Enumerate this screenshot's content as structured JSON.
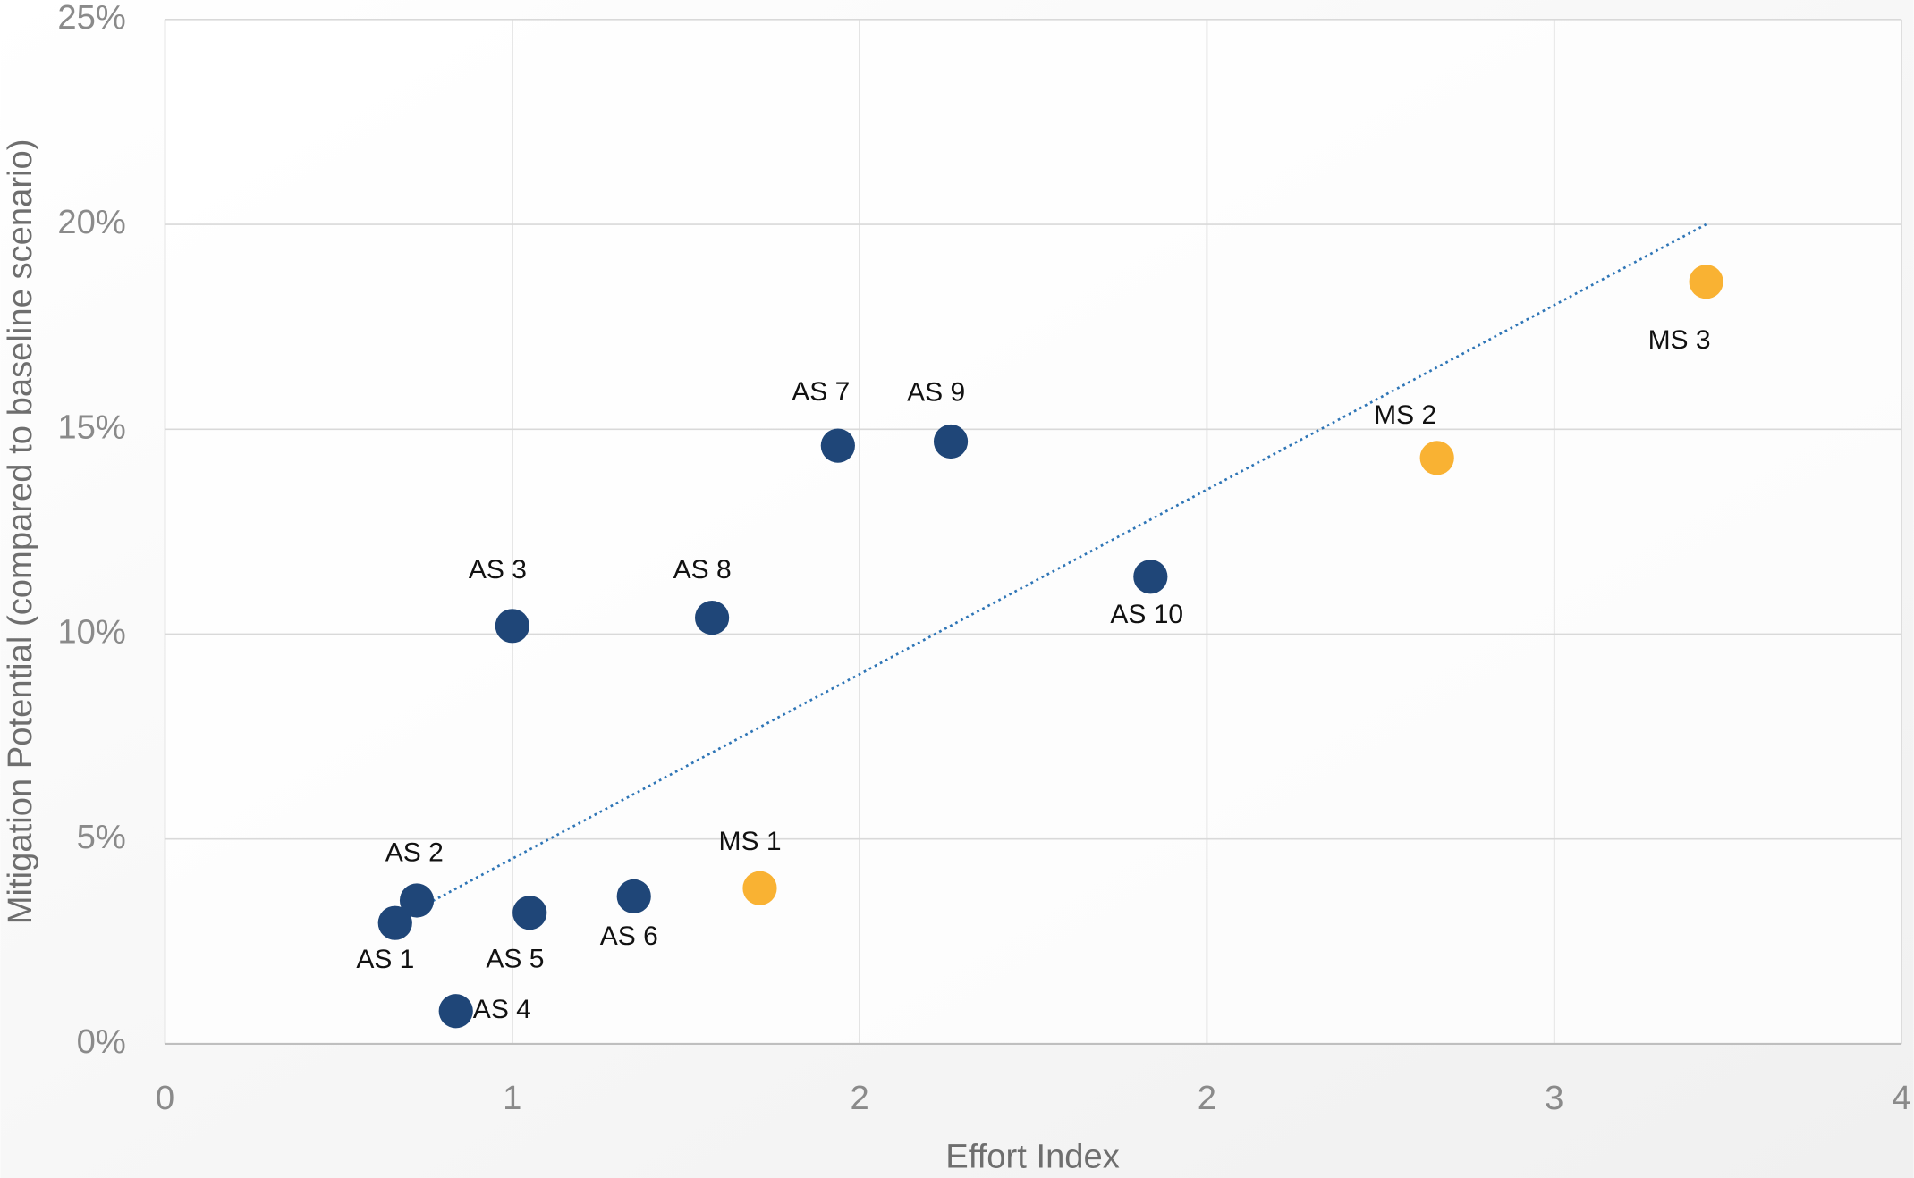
{
  "chart_data": {
    "type": "scatter",
    "xlabel": "Effort Index",
    "ylabel": "Mitigation Potential (compared to baseline scenario)",
    "xlim": [
      0,
      4
    ],
    "xticks": [
      0,
      {
        "value": 0.8,
        "label": "1"
      },
      {
        "value": 1.6,
        "label": "2"
      },
      {
        "value": 2.4,
        "label": "2"
      },
      {
        "value": 3.2,
        "label": "3"
      },
      4
    ],
    "ylim": [
      0,
      25
    ],
    "yticks": [
      {
        "value": 0,
        "label": "0%"
      },
      {
        "value": 5,
        "label": "5%"
      },
      {
        "value": 10,
        "label": "10%"
      },
      {
        "value": 15,
        "label": "15%"
      },
      {
        "value": 20,
        "label": "20%"
      },
      {
        "value": 25,
        "label": "25%"
      }
    ],
    "grid": true,
    "series": [
      {
        "color": "#1f4678",
        "labels": [
          "AS 1",
          "AS 2",
          "AS 3",
          "AS 4",
          "AS 5",
          "AS 6",
          "AS 7",
          "AS 8",
          "AS 9",
          "AS 10"
        ],
        "x": [
          0.53,
          0.58,
          0.8,
          0.67,
          0.84,
          1.08,
          1.55,
          1.26,
          1.81,
          2.27
        ],
        "values": [
          2.95,
          3.5,
          10.2,
          0.8,
          3.2,
          3.6,
          14.6,
          10.4,
          14.7,
          11.4
        ]
      },
      {
        "color": "#f9b233",
        "labels": [
          "MS 1",
          "MS 2",
          "MS 3"
        ],
        "x": [
          1.37,
          2.93,
          3.55
        ],
        "values": [
          3.8,
          14.3,
          18.6
        ]
      }
    ],
    "trendline": {
      "color": "#2e75b6",
      "x": [
        0.53,
        3.55
      ],
      "values": [
        3,
        20
      ]
    }
  }
}
